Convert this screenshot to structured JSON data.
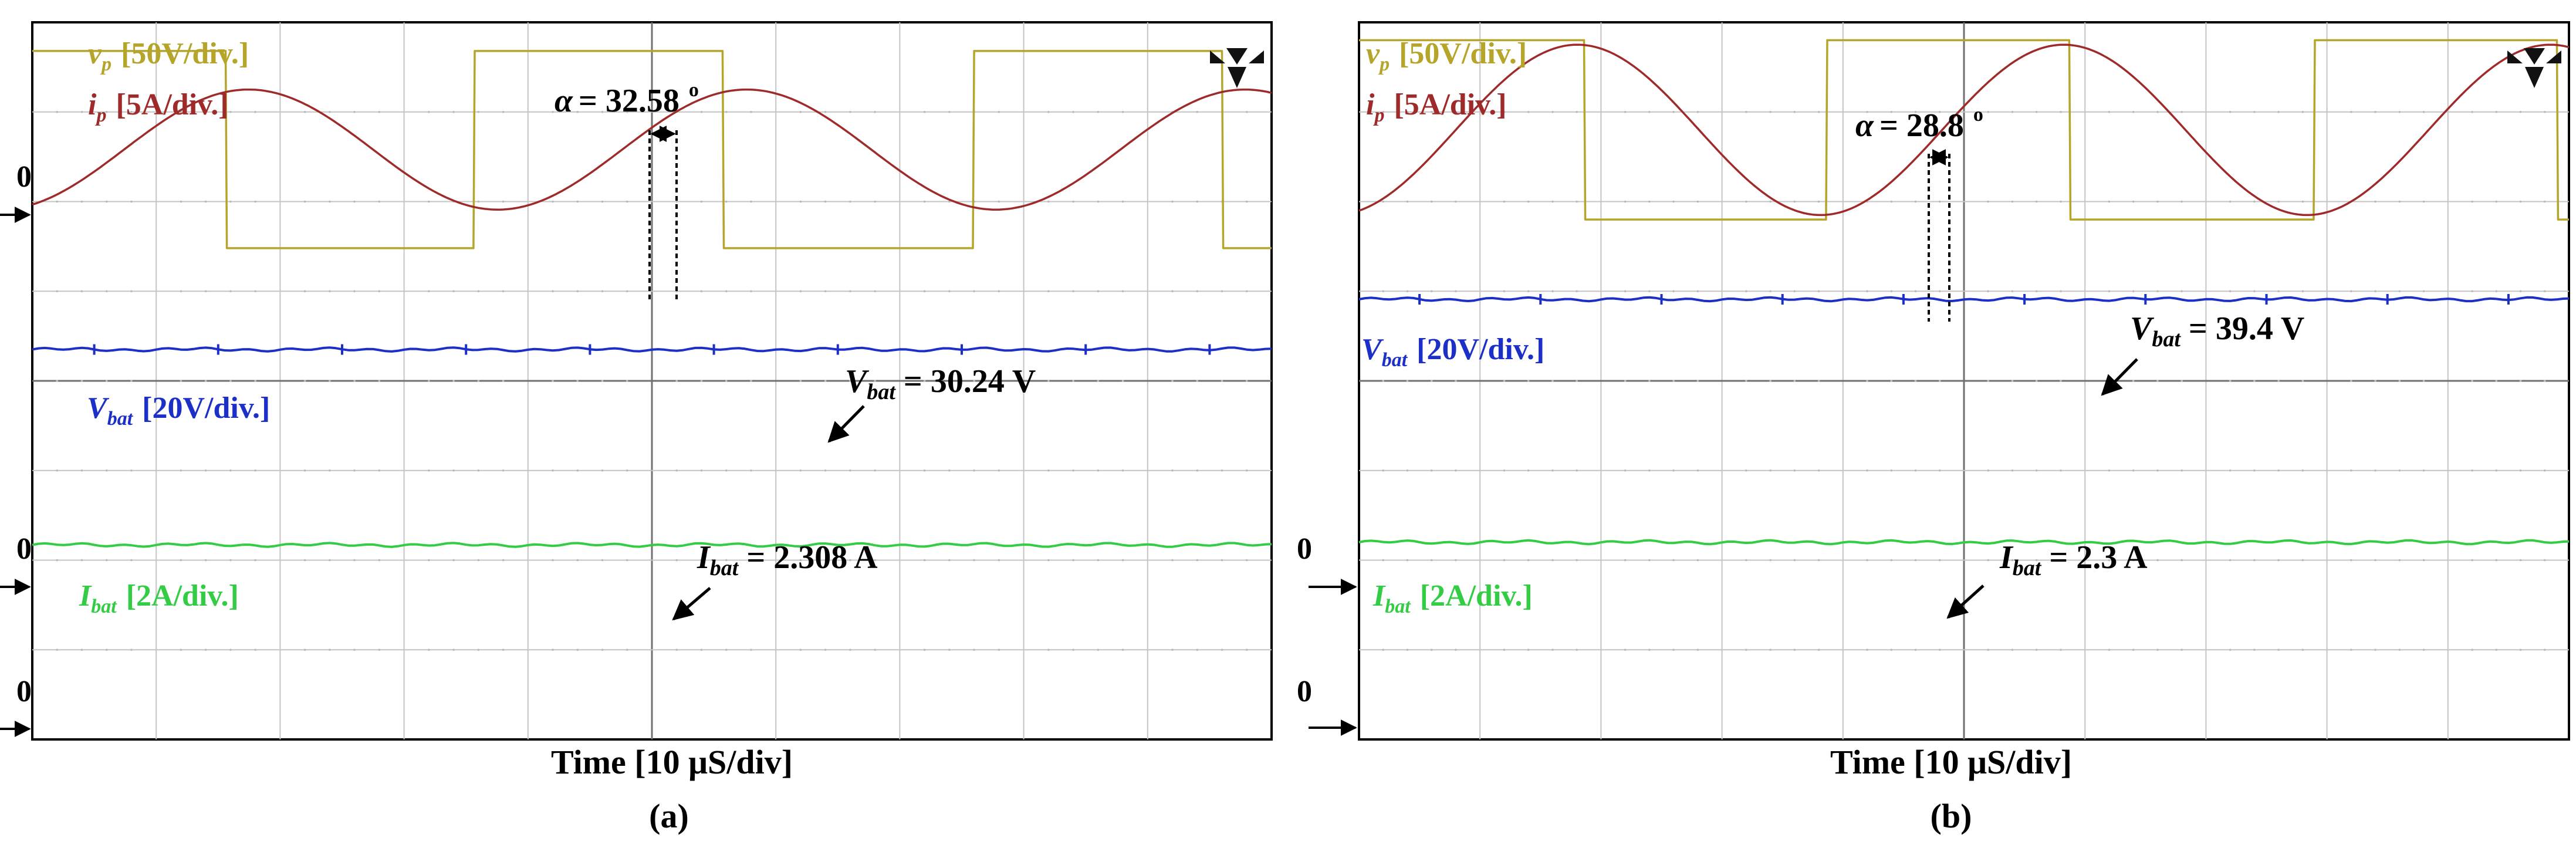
{
  "figure": {
    "panels": [
      {
        "id": "a",
        "caption": "(a)",
        "xlabel": "Time [10 μS/div]",
        "ground_markers": [
          "0",
          "0"
        ],
        "labels": {
          "vp_sym": "v",
          "vp_sub": "p",
          "vp_scale": "[50V/div.]",
          "ip_sym": "i",
          "ip_sub": "p",
          "ip_scale": "[5A/div.]",
          "vbat_sym": "V",
          "vbat_sub": "bat",
          "vbat_scale": "[20V/div.]",
          "ibat_sym": "I",
          "ibat_sub": "bat",
          "ibat_scale": "[2A/div.]"
        },
        "annotations": {
          "alpha_sym": "α",
          "alpha_value": "= 32.58",
          "alpha_unit": "o",
          "vbat_sym": "V",
          "vbat_sub": "bat",
          "vbat_value": "= 30.24 V",
          "ibat_sym": "I",
          "ibat_sub": "bat",
          "ibat_value": "= 2.308 A"
        }
      },
      {
        "id": "b",
        "caption": "(b)",
        "xlabel": "Time [10 μS/div]",
        "ground_markers": [
          "0",
          "0"
        ],
        "labels": {
          "vp_sym": "v",
          "vp_sub": "p",
          "vp_scale": "[50V/div.]",
          "ip_sym": "i",
          "ip_sub": "p",
          "ip_scale": "[5A/div.]",
          "vbat_sym": "V",
          "vbat_sub": "bat",
          "vbat_scale": "[20V/div.]",
          "ibat_sym": "I",
          "ibat_sub": "bat",
          "ibat_scale": "[2A/div.]"
        },
        "annotations": {
          "alpha_sym": "α",
          "alpha_value": "= 28.8",
          "alpha_unit": "o",
          "vbat_sym": "V",
          "vbat_sub": "bat",
          "vbat_value": "= 39.4 V",
          "ibat_sym": "I",
          "ibat_sub": "bat",
          "ibat_value": "= 2.3 A"
        }
      }
    ]
  },
  "chart_data": [
    {
      "type": "line",
      "title": "(a)",
      "xlabel": "Time [10 μS/div]",
      "x_divisions": 10,
      "y_divisions": 8,
      "grid": true,
      "x_unit": "μs",
      "x_range": [
        0,
        100
      ],
      "series": [
        {
          "name": "v_p",
          "color": "#b5a52a",
          "shape": "square",
          "scale": "50V/div.",
          "period_us": 40.2,
          "phase_offset_us": -4.5,
          "amplitude_div": 1.1,
          "center_div": 6.58
        },
        {
          "name": "i_p",
          "color": "#9e2a2a",
          "shape": "sine",
          "scale": "5A/div.",
          "period_us": 40.2,
          "phase_offset_us": 7.4,
          "amplitude_div": 0.67,
          "center_div": 6.58
        },
        {
          "name": "V_bat",
          "color": "#1c2fc6",
          "shape": "dc",
          "scale": "20V/div.",
          "value": "30.24 V",
          "level_div": 4.35
        },
        {
          "name": "I_bat",
          "color": "#33cc44",
          "shape": "dc",
          "scale": "2A/div.",
          "value": "2.308 A",
          "level_div": 2.17
        }
      ],
      "phase_angle_deg": 32.58
    },
    {
      "type": "line",
      "title": "(b)",
      "xlabel": "Time [10 μS/div]",
      "x_divisions": 10,
      "y_divisions": 8,
      "grid": true,
      "x_unit": "μs",
      "x_range": [
        0,
        100
      ],
      "series": [
        {
          "name": "v_p",
          "color": "#b5a52a",
          "shape": "square",
          "scale": "50V/div.",
          "period_us": 40.2,
          "phase_offset_us": -1.5,
          "amplitude_div": 1.0,
          "center_div": 6.8
        },
        {
          "name": "i_p",
          "color": "#9e2a2a",
          "shape": "sine",
          "scale": "5A/div.",
          "period_us": 40.2,
          "phase_offset_us": 8.0,
          "amplitude_div": 0.95,
          "center_div": 6.8
        },
        {
          "name": "V_bat",
          "color": "#1c2fc6",
          "shape": "dc",
          "scale": "20V/div.",
          "value": "39.4 V",
          "level_div": 4.91
        },
        {
          "name": "I_bat",
          "color": "#33cc44",
          "shape": "dc",
          "scale": "2A/div.",
          "value": "2.3 A",
          "level_div": 2.2
        }
      ],
      "phase_angle_deg": 28.8
    }
  ]
}
